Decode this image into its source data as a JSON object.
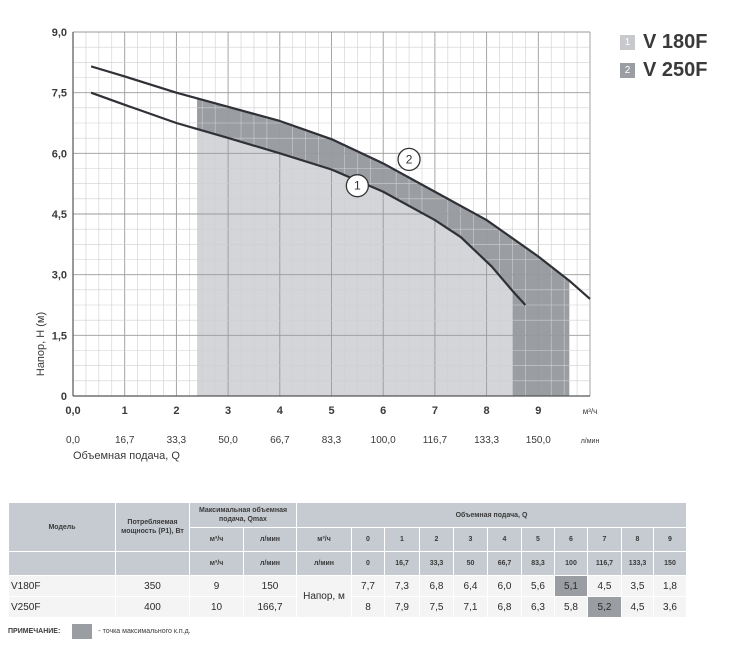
{
  "chart_data": {
    "type": "line",
    "xlabel": "Напор, Н (м)",
    "ylabel": "Напор, Н (м)",
    "x_unit": "м³/ч",
    "x2_label": "Объемная подача, Q",
    "x2_unit": "л/мин",
    "xlim": [
      0,
      10
    ],
    "ylim": [
      0,
      9
    ],
    "x_ticks": [
      "0,0",
      "1",
      "2",
      "3",
      "4",
      "5",
      "6",
      "7",
      "8",
      "9"
    ],
    "x2_ticks": [
      "0,0",
      "16,7",
      "33,3",
      "50,0",
      "66,7",
      "83,3",
      "100,0",
      "116,7",
      "133,3",
      "150,0"
    ],
    "y_ticks": [
      {
        "value": 0,
        "label": "0"
      },
      {
        "value": 1.5,
        "label": "1,5"
      },
      {
        "value": 3,
        "label": "3,0"
      },
      {
        "value": 4.5,
        "label": "4,5"
      },
      {
        "value": 6,
        "label": "6,0"
      },
      {
        "value": 7.5,
        "label": "7,5"
      },
      {
        "value": 9,
        "label": "9,0"
      }
    ],
    "grid": true,
    "series": [
      {
        "name": "V 180F",
        "marker": "1",
        "color": "#2f3137",
        "x": [
          0.35,
          1,
          2,
          3,
          4,
          5,
          6,
          7,
          7.5,
          8.1,
          8.5,
          8.75
        ],
        "y": [
          7.5,
          7.2,
          6.75,
          6.38,
          6.0,
          5.6,
          5.05,
          4.35,
          3.93,
          3.2,
          2.6,
          2.25
        ]
      },
      {
        "name": "V 250F",
        "marker": "2",
        "color": "#2f3137",
        "x": [
          0.35,
          1,
          2,
          3,
          4,
          5,
          6,
          7,
          8,
          9,
          9.6,
          10.0
        ],
        "y": [
          8.15,
          7.9,
          7.5,
          7.15,
          6.8,
          6.35,
          5.75,
          5.05,
          4.35,
          3.45,
          2.85,
          2.4
        ]
      }
    ],
    "bands": [
      {
        "from": 2.4,
        "to": 8.5,
        "color": "#d3d5d9",
        "ceiling": "V 250F"
      },
      {
        "from": 8.5,
        "to": 9.6,
        "color": "#9a9da2",
        "ceiling": "V 250F"
      }
    ],
    "between_fill_color": "#9a9da2",
    "markers": [
      {
        "label": "1",
        "x": 5.5,
        "y": 5.2
      },
      {
        "label": "2",
        "x": 6.5,
        "y": 5.85
      }
    ]
  },
  "legend": [
    {
      "num": "1",
      "name": "V 180F",
      "color": "#c7c9cd"
    },
    {
      "num": "2",
      "name": "V 250F",
      "color": "#9a9da2"
    }
  ],
  "table": {
    "head": {
      "model": "Модель",
      "power": "Потребляемая мощность (P1), Вт",
      "max_flow": "Максимальная объемная подача, Qmax",
      "m3h": "м³/ч",
      "lmin": "л/мин",
      "flow_group": "Объемная подача, Q",
      "flow_m3h": [
        "0",
        "1",
        "2",
        "3",
        "4",
        "5",
        "6",
        "7",
        "8",
        "9"
      ],
      "flow_lmin": [
        "0",
        "16,7",
        "33,3",
        "50",
        "66,7",
        "83,3",
        "100",
        "116,7",
        "133,3",
        "150"
      ]
    },
    "head_label": "Напор, м",
    "rows": [
      {
        "model": "V180F",
        "power": "350",
        "q_m3h": "9",
        "q_lmin": "150",
        "values": [
          "7,7",
          "7,3",
          "6,8",
          "6,4",
          "6,0",
          "5,6",
          "5,1",
          "4,5",
          "3,5",
          "1,8"
        ],
        "highlight": 6
      },
      {
        "model": "V250F",
        "power": "400",
        "q_m3h": "10",
        "q_lmin": "166,7",
        "values": [
          "8",
          "7,9",
          "7,5",
          "7,1",
          "6,8",
          "6,3",
          "5,8",
          "5,2",
          "4,5",
          "3,6"
        ],
        "highlight": 7
      }
    ]
  },
  "note": {
    "label": "ПРИМЕЧАНИЕ:",
    "text": "- точка максимального к.п.д.",
    "color": "#9a9da2"
  }
}
